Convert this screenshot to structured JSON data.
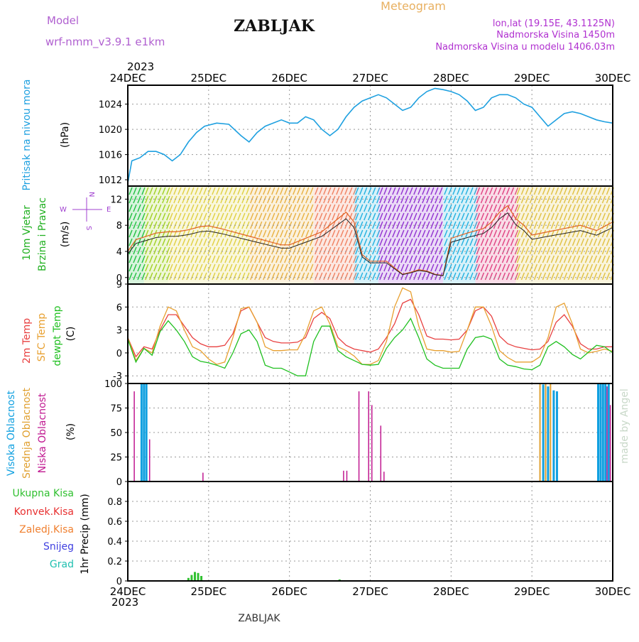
{
  "header": {
    "model_label": "Model",
    "model_name": "wrf-nmm_v3.9.1 e1km",
    "title": "ZABLJAK",
    "meteogram_label": "Meteogram",
    "lonlat": "lon,lat (19.15E, 43.1125N)",
    "elevation": "Nadmorska Visina 1450m",
    "model_elevation": "Nadmorska Visina u modelu 1406.03m"
  },
  "footer": {
    "station": "ZABLJAK"
  },
  "watermark": "made by Angel",
  "time_axis": {
    "year": "2023",
    "dates": [
      "24DEC",
      "25DEC",
      "26DEC",
      "27DEC",
      "28DEC",
      "29DEC",
      "30DEC"
    ]
  },
  "colors": {
    "pressure": "#1ea0e0",
    "temp2m": "#e84040",
    "sfc_temp": "#e8a030",
    "dewpt": "#20c020",
    "cloud_high": "#10a0e0",
    "cloud_mid": "#e0a030",
    "cloud_low": "#c01890",
    "precip_total": "#30c030",
    "precip_conv": "#e83030",
    "precip_frozen": "#f08030",
    "snow": "#4040e0",
    "hail": "#20c0b0",
    "wind_label": "#20b020",
    "compass": "#a040d0"
  },
  "panels": {
    "pressure": {
      "label1": "Pritisak na nivou mora",
      "unit": "(hPa)"
    },
    "wind": {
      "label1": "10m Vjetar",
      "label2": "Brzina i Pravac",
      "unit": "(m/s)",
      "compass_n": "N",
      "compass_s": "S",
      "compass_w": "W",
      "compass_e": "E"
    },
    "temp": {
      "label_2m": "2m Temp",
      "label_sfc": "SFC Temp",
      "label_dew": "dewpt Temp",
      "unit": "(C)"
    },
    "cloud": {
      "label_high": "Visoka Oblacnost",
      "label_mid": "Srednja Oblacnost",
      "label_low": "Niska Oblacnost",
      "unit": "(%)"
    },
    "precip": {
      "label_total": "Ukupna Kisa",
      "label_conv": "Konvek.Kisa",
      "label_frozen": "Zaledj.Kisa",
      "label_snow": "Snijeg",
      "label_hail": "Grad",
      "unit": "1hr Precip (mm)"
    }
  },
  "chart_data": [
    {
      "type": "line",
      "name": "pressure",
      "ylabel": "(hPa)",
      "ylim": [
        1011,
        1027
      ],
      "yticks": [
        1012,
        1016,
        1020,
        1024
      ],
      "x_days": [
        0,
        0.05,
        0.15,
        0.25,
        0.35,
        0.45,
        0.55,
        0.65,
        0.75,
        0.85,
        0.95,
        1.1,
        1.25,
        1.4,
        1.5,
        1.6,
        1.7,
        1.8,
        1.9,
        2.0,
        2.1,
        2.2,
        2.3,
        2.4,
        2.5,
        2.6,
        2.7,
        2.8,
        2.9,
        3.0,
        3.1,
        3.2,
        3.3,
        3.4,
        3.5,
        3.6,
        3.7,
        3.8,
        3.9,
        4.0,
        4.1,
        4.2,
        4.3,
        4.4,
        4.5,
        4.6,
        4.7,
        4.8,
        4.9,
        5.0,
        5.1,
        5.2,
        5.3,
        5.4,
        5.5,
        5.6,
        5.7,
        5.8,
        5.9,
        6.0
      ],
      "values": [
        1011.5,
        1015,
        1015.5,
        1016.5,
        1016.5,
        1016,
        1015,
        1016,
        1018,
        1019.5,
        1020.5,
        1021,
        1020.8,
        1019,
        1018,
        1019.5,
        1020.5,
        1021,
        1021.5,
        1021,
        1021,
        1022,
        1021.5,
        1020,
        1019,
        1020,
        1022,
        1023.5,
        1024.5,
        1025,
        1025.5,
        1025,
        1024,
        1023,
        1023.5,
        1025,
        1026,
        1026.5,
        1026.3,
        1026,
        1025.5,
        1024.5,
        1023,
        1023.5,
        1025,
        1025.5,
        1025.5,
        1025,
        1024,
        1023.5,
        1022,
        1020.5,
        1021.5,
        1022.5,
        1022.8,
        1022.5,
        1022,
        1021.5,
        1021.2,
        1021
      ]
    },
    {
      "type": "line",
      "name": "wind",
      "ylabel": "(m/s)",
      "ylim": [
        -1,
        14
      ],
      "yticks": [
        0,
        4,
        8,
        12
      ],
      "x_days": [
        0,
        0.1,
        0.2,
        0.35,
        0.5,
        0.6,
        0.75,
        0.9,
        1.0,
        1.15,
        1.3,
        1.45,
        1.6,
        1.75,
        1.9,
        2.0,
        2.2,
        2.4,
        2.5,
        2.6,
        2.7,
        2.8,
        2.9,
        3.0,
        3.2,
        3.4,
        3.5,
        3.6,
        3.7,
        3.8,
        3.9,
        4.0,
        4.2,
        4.4,
        4.5,
        4.6,
        4.7,
        4.8,
        4.9,
        5.0,
        5.2,
        5.4,
        5.6,
        5.8,
        6.0
      ],
      "series": [
        {
          "values": [
            4,
            5.8,
            6.2,
            6.8,
            7,
            7,
            7.3,
            7.8,
            7.9,
            7.5,
            7,
            6.5,
            6,
            5.5,
            5,
            5,
            6,
            7,
            8,
            9,
            10,
            8.5,
            3.5,
            2.5,
            2.5,
            0.5,
            0.8,
            1.2,
            1,
            0.5,
            0.3,
            6,
            6.8,
            7.5,
            8.5,
            10,
            11,
            9,
            8,
            6.5,
            7,
            7.5,
            8,
            7.2,
            8.5
          ]
        }
      ],
      "direction_bands": [
        {
          "from": 0,
          "to": 0.2,
          "color": "#20c040"
        },
        {
          "from": 0.2,
          "to": 0.5,
          "color": "#a0d020"
        },
        {
          "from": 0.5,
          "to": 1.5,
          "color": "#e0d040"
        },
        {
          "from": 1.5,
          "to": 2.3,
          "color": "#e8b040"
        },
        {
          "from": 2.3,
          "to": 2.8,
          "color": "#f08060"
        },
        {
          "from": 2.8,
          "to": 3.1,
          "color": "#20b0e0"
        },
        {
          "from": 3.1,
          "to": 3.9,
          "color": "#9030d0"
        },
        {
          "from": 3.9,
          "to": 4.3,
          "color": "#20b0e0"
        },
        {
          "from": 4.3,
          "to": 4.8,
          "color": "#e04080"
        },
        {
          "from": 4.8,
          "to": 6.0,
          "color": "#e0c040"
        }
      ]
    },
    {
      "type": "line",
      "name": "temperature",
      "ylabel": "(C)",
      "ylim": [
        -4,
        9
      ],
      "yticks": [
        -3,
        0,
        3,
        6,
        9
      ],
      "x_days": [
        0,
        0.1,
        0.2,
        0.3,
        0.4,
        0.5,
        0.6,
        0.7,
        0.8,
        0.9,
        1.0,
        1.1,
        1.2,
        1.3,
        1.4,
        1.5,
        1.6,
        1.7,
        1.8,
        1.9,
        2.0,
        2.1,
        2.2,
        2.3,
        2.4,
        2.5,
        2.6,
        2.7,
        2.8,
        2.9,
        3.0,
        3.1,
        3.2,
        3.3,
        3.4,
        3.5,
        3.6,
        3.7,
        3.8,
        3.9,
        4.0,
        4.1,
        4.2,
        4.3,
        4.4,
        4.5,
        4.6,
        4.7,
        4.8,
        4.9,
        5.0,
        5.1,
        5.2,
        5.3,
        5.4,
        5.5,
        5.6,
        5.7,
        5.8,
        5.9,
        6.0
      ],
      "series": [
        {
          "name": "2m Temp",
          "values": [
            2,
            -0.5,
            0.8,
            0.5,
            3,
            5,
            5,
            3.5,
            2,
            1.2,
            0.8,
            0.8,
            1,
            2.5,
            5.5,
            6,
            4,
            2,
            1.5,
            1.3,
            1.3,
            1.4,
            2,
            4.5,
            5.3,
            4.5,
            2,
            1,
            0.5,
            0.3,
            0.1,
            0.5,
            2,
            3.8,
            6.5,
            7,
            5,
            2.2,
            1.8,
            1.8,
            1.7,
            1.8,
            3,
            5.5,
            6,
            4.8,
            2.2,
            1.2,
            0.8,
            0.6,
            0.4,
            0.5,
            1.5,
            4,
            5,
            3.5,
            1.2,
            0.5,
            0.5,
            0.8,
            0.8
          ]
        },
        {
          "name": "SFC Temp",
          "values": [
            2,
            -1,
            0.6,
            0,
            3.5,
            6,
            5.5,
            3,
            0.8,
            0.3,
            -0.8,
            -1.5,
            -1.2,
            2,
            5.8,
            6,
            4,
            0.8,
            0.3,
            0.3,
            0.4,
            0.4,
            2.5,
            5.5,
            6,
            3.8,
            0.8,
            0.3,
            -0.4,
            -1.5,
            -1.5,
            -1,
            1.5,
            6,
            8.5,
            8,
            3.5,
            0.5,
            0.3,
            0.3,
            0.1,
            0.2,
            3,
            6,
            6,
            3.5,
            0.3,
            -0.6,
            -1.2,
            -1.2,
            -1.2,
            -0.5,
            2,
            6,
            6.5,
            3.8,
            0.5,
            0,
            0.2,
            0.5,
            0.2
          ]
        },
        {
          "name": "dewpt Temp",
          "values": [
            1.8,
            -1.2,
            0.6,
            -0.3,
            2.8,
            4.2,
            3,
            1.5,
            -0.5,
            -1.1,
            -1.3,
            -1.6,
            -2,
            0,
            2.5,
            3,
            1.5,
            -1.6,
            -2,
            -2,
            -2.5,
            -3,
            -3,
            1.5,
            3.5,
            3.5,
            0.3,
            -0.5,
            -1,
            -1.5,
            -1.6,
            -1.5,
            0.6,
            2,
            3,
            4.5,
            2,
            -0.8,
            -1.6,
            -2,
            -2,
            -2,
            0.5,
            2,
            2.2,
            1.8,
            -0.8,
            -1.6,
            -1.8,
            -2.1,
            -2.2,
            -1.6,
            0.8,
            1.5,
            0.8,
            -0.2,
            -0.8,
            0.1,
            1,
            0.8,
            0
          ]
        }
      ]
    },
    {
      "type": "bar",
      "name": "cloud_cover",
      "ylabel": "(%)",
      "ylim": [
        0,
        100
      ],
      "yticks": [
        0,
        25,
        50,
        75,
        100
      ],
      "bars": [
        {
          "layer": "low",
          "x": 0.08,
          "value": 92
        },
        {
          "layer": "high",
          "x": 0.17,
          "value": 100
        },
        {
          "layer": "high",
          "x": 0.2,
          "value": 100
        },
        {
          "layer": "high",
          "x": 0.23,
          "value": 100
        },
        {
          "layer": "low",
          "x": 0.27,
          "value": 43
        },
        {
          "layer": "low",
          "x": 0.93,
          "value": 9
        },
        {
          "layer": "low",
          "x": 2.67,
          "value": 11
        },
        {
          "layer": "low",
          "x": 2.71,
          "value": 11
        },
        {
          "layer": "low",
          "x": 2.86,
          "value": 92
        },
        {
          "layer": "low",
          "x": 2.98,
          "value": 92
        },
        {
          "layer": "low",
          "x": 3.02,
          "value": 78
        },
        {
          "layer": "low",
          "x": 3.13,
          "value": 57
        },
        {
          "layer": "low",
          "x": 3.17,
          "value": 10
        },
        {
          "layer": "mid",
          "x": 5.1,
          "value": 100
        },
        {
          "layer": "high",
          "x": 5.14,
          "value": 99
        },
        {
          "layer": "mid",
          "x": 5.17,
          "value": 100
        },
        {
          "layer": "high",
          "x": 5.2,
          "value": 97
        },
        {
          "layer": "mid",
          "x": 5.23,
          "value": 100
        },
        {
          "layer": "high",
          "x": 5.27,
          "value": 93
        },
        {
          "layer": "high",
          "x": 5.31,
          "value": 92
        },
        {
          "layer": "high",
          "x": 5.82,
          "value": 100
        },
        {
          "layer": "high",
          "x": 5.85,
          "value": 100
        },
        {
          "layer": "high",
          "x": 5.88,
          "value": 100
        },
        {
          "layer": "high",
          "x": 5.91,
          "value": 100
        },
        {
          "layer": "low",
          "x": 5.93,
          "value": 97
        },
        {
          "layer": "high",
          "x": 5.95,
          "value": 100
        },
        {
          "layer": "low",
          "x": 5.97,
          "value": 78
        }
      ]
    },
    {
      "type": "bar",
      "name": "precipitation",
      "ylabel": "1hr Precip (mm)",
      "ylim": [
        0,
        1.0
      ],
      "yticks": [
        0,
        0.2,
        0.4,
        0.6,
        0.8
      ],
      "bars": [
        {
          "x": 0.08,
          "value": 0.006
        },
        {
          "x": 0.2,
          "value": 0.005
        },
        {
          "x": 0.75,
          "value": 0.03
        },
        {
          "x": 0.79,
          "value": 0.06
        },
        {
          "x": 0.83,
          "value": 0.09
        },
        {
          "x": 0.87,
          "value": 0.08
        },
        {
          "x": 0.91,
          "value": 0.05
        },
        {
          "x": 2.62,
          "value": 0.015
        }
      ]
    }
  ]
}
